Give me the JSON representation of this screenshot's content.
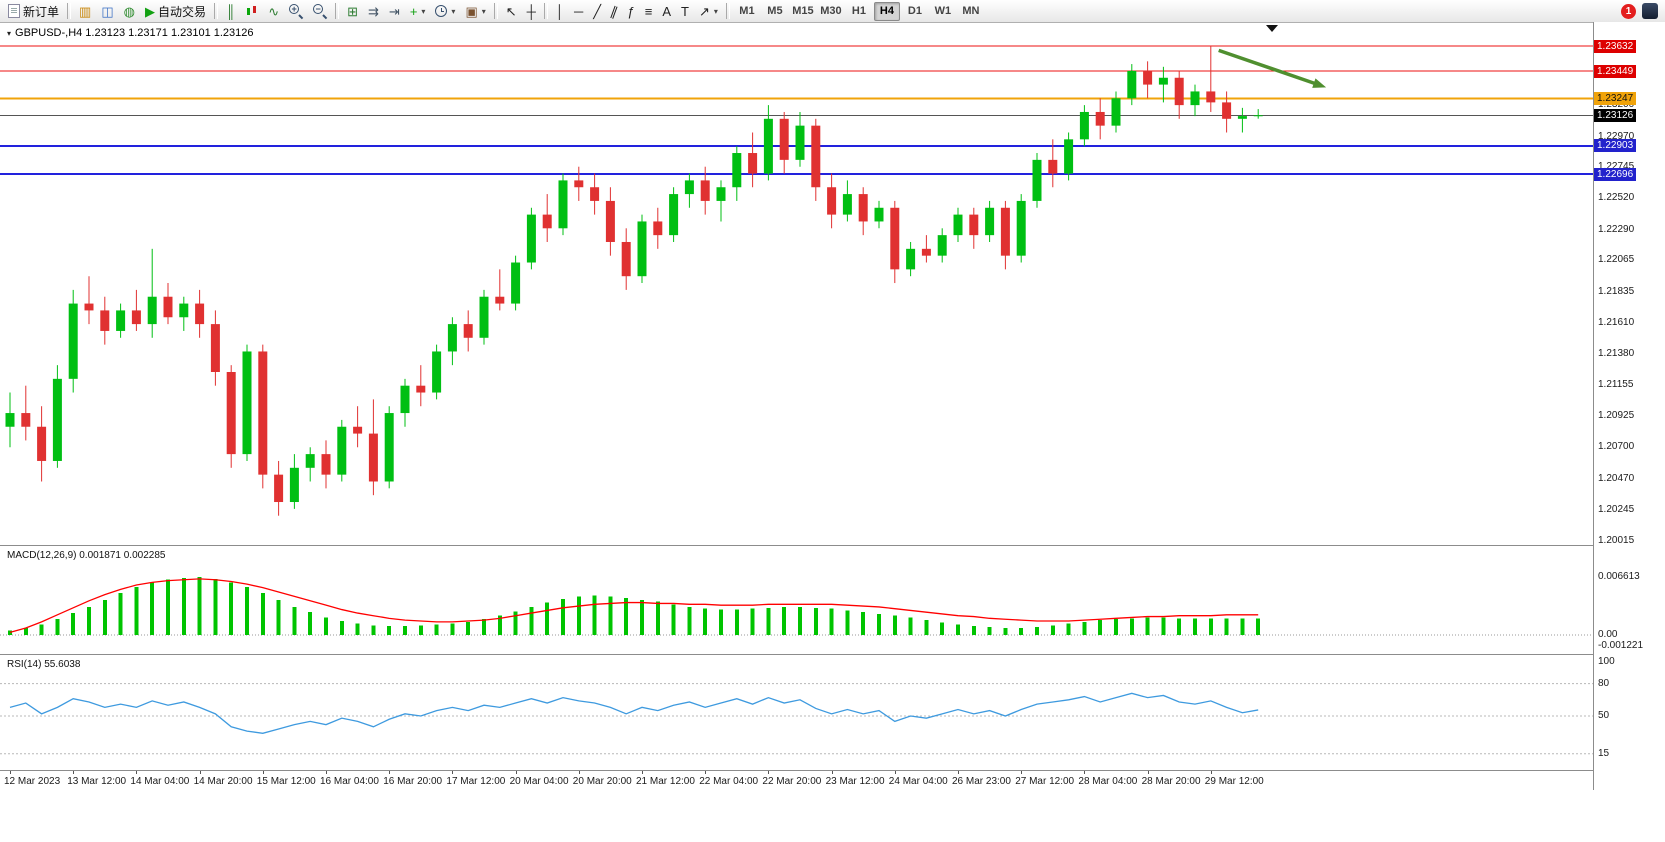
{
  "toolbar": {
    "timeframes": [
      "M1",
      "M5",
      "M15",
      "M30",
      "H1",
      "H4",
      "D1",
      "W1",
      "MN"
    ],
    "active_timeframe": "H4",
    "notification_count": "1",
    "groups": [
      {
        "items": [
          {
            "name": "new-order-button",
            "cssIcon": "doc",
            "icon": "new-order-icon",
            "label": "新订单"
          }
        ]
      },
      {
        "items": [
          {
            "name": "market-watch-button",
            "glyph": "▥",
            "color": "#c8860a",
            "icon": "market-watch-icon"
          },
          {
            "name": "navigator-button",
            "glyph": "◫",
            "color": "#3a6fc4",
            "icon": "navigator-icon"
          },
          {
            "name": "terminal-button",
            "glyph": "◍",
            "color": "#2e8b2e",
            "icon": "terminal-icon"
          },
          {
            "name": "autotrading-button",
            "glyph": "▶",
            "color": "#12a012",
            "icon": "autotrading-play-icon",
            "label": "自动交易"
          }
        ]
      },
      {
        "items": [
          {
            "name": "bar-chart-button",
            "glyph": "║",
            "color": "#2e7d32",
            "icon": "bar-chart-icon"
          },
          {
            "name": "candlestick-chart-button",
            "cssIcon": "candles",
            "icon": "candlestick-icon"
          },
          {
            "name": "line-chart-button",
            "glyph": "∿",
            "color": "#2e7d32",
            "icon": "line-chart-icon"
          },
          {
            "name": "zoom-in-button",
            "cssIcon": "zoomin",
            "icon": "zoom-in-icon"
          },
          {
            "name": "zoom-out-button",
            "cssIcon": "zoomout",
            "icon": "zoom-out-icon"
          }
        ]
      },
      {
        "items": [
          {
            "name": "tile-windows-button",
            "glyph": "⊞",
            "color": "#2e7d32",
            "icon": "tile-windows-icon"
          },
          {
            "name": "auto-scroll-button",
            "glyph": "⇉",
            "color": "#445566",
            "icon": "auto-scroll-icon"
          },
          {
            "name": "chart-shift-button",
            "glyph": "⇥",
            "color": "#445566",
            "icon": "chart-shift-icon"
          },
          {
            "name": "indicators-button",
            "glyph": "+",
            "color": "#12a012",
            "icon": "indicators-plus-icon",
            "dropdown": true
          },
          {
            "name": "periods-button",
            "cssIcon": "clock",
            "icon": "periods-clock-icon",
            "dropdown": true
          },
          {
            "name": "templates-button",
            "glyph": "▣",
            "color": "#7a5230",
            "icon": "templates-icon",
            "dropdown": true
          }
        ]
      },
      {
        "items": [
          {
            "name": "cursor-button",
            "glyph": "↖",
            "color": "#222222",
            "icon": "cursor-icon"
          },
          {
            "name": "crosshair-button",
            "glyph": "┼",
            "color": "#222222",
            "icon": "crosshair-icon"
          }
        ]
      },
      {
        "items": [
          {
            "name": "vertical-line-button",
            "glyph": "│",
            "color": "#222222",
            "icon": "vertical-line-icon"
          },
          {
            "name": "horizontal-line-button",
            "glyph": "─",
            "color": "#222222",
            "icon": "horizontal-line-icon"
          },
          {
            "name": "trendline-button",
            "glyph": "╱",
            "color": "#222222",
            "icon": "trendline-icon"
          },
          {
            "name": "channel-button",
            "glyph": "∥",
            "color": "#222222",
            "rot": true,
            "icon": "channel-icon"
          },
          {
            "name": "fibonacci-button",
            "glyph": "ƒ",
            "color": "#222222",
            "icon": "fibonacci-icon"
          },
          {
            "name": "cycle-lines-button",
            "glyph": "≡",
            "color": "#222222",
            "icon": "cycle-lines-icon"
          },
          {
            "name": "text-button",
            "glyph": "A",
            "color": "#222222",
            "icon": "text-icon"
          },
          {
            "name": "text-label-button",
            "glyph": "T",
            "color": "#222222",
            "icon": "text-label-icon"
          },
          {
            "name": "arrows-button",
            "glyph": "↗",
            "color": "#222222",
            "icon": "arrows-icon",
            "dropdown": true
          }
        ]
      }
    ]
  },
  "chart": {
    "title": "GBPUSD-,H4  1.23123 1.23171 1.23101 1.23126",
    "macd_label": "MACD(12,26,9) 0.001871 0.002285",
    "rsi_label": "RSI(14) 55.6038",
    "price_axis_labels": [
      "1.23200",
      "1.22970",
      "1.22745",
      "1.22520",
      "1.22290",
      "1.22065",
      "1.21835",
      "1.21610",
      "1.21380",
      "1.21155",
      "1.20925",
      "1.20700",
      "1.20470",
      "1.20245",
      "1.20015"
    ],
    "time_axis_labels": [
      "12 Mar 2023",
      "13 Mar 12:00",
      "14 Mar 04:00",
      "14 Mar 20:00",
      "15 Mar 12:00",
      "16 Mar 04:00",
      "16 Mar 20:00",
      "17 Mar 12:00",
      "20 Mar 04:00",
      "20 Mar 20:00",
      "21 Mar 12:00",
      "22 Mar 04:00",
      "22 Mar 20:00",
      "23 Mar 12:00",
      "24 Mar 04:00",
      "26 Mar 23:00",
      "27 Mar 12:00",
      "28 Mar 04:00",
      "28 Mar 20:00",
      "29 Mar 12:00"
    ],
    "macd_scale_labels": [
      "0.006613",
      "0.00",
      "-0.001221"
    ],
    "rsi_scale_labels": [
      "100",
      "80",
      "50",
      "15"
    ]
  },
  "chart_data": [
    {
      "type": "candlestick",
      "symbol": "GBPUSD-",
      "timeframe": "H4",
      "up_color": "#00bf13",
      "down_color": "#e03131",
      "ohlc": [
        [
          1.2085,
          1.211,
          1.207,
          1.2095
        ],
        [
          1.2095,
          1.2115,
          1.2075,
          1.2085
        ],
        [
          1.2085,
          1.21,
          1.2045,
          1.206
        ],
        [
          1.206,
          1.213,
          1.2055,
          1.212
        ],
        [
          1.212,
          1.2185,
          1.211,
          1.2175
        ],
        [
          1.2175,
          1.2195,
          1.216,
          1.217
        ],
        [
          1.217,
          1.218,
          1.2145,
          1.2155
        ],
        [
          1.2155,
          1.2175,
          1.215,
          1.217
        ],
        [
          1.217,
          1.2185,
          1.2155,
          1.216
        ],
        [
          1.216,
          1.2215,
          1.215,
          1.218
        ],
        [
          1.218,
          1.219,
          1.216,
          1.2165
        ],
        [
          1.2165,
          1.218,
          1.2155,
          1.2175
        ],
        [
          1.2175,
          1.2185,
          1.215,
          1.216
        ],
        [
          1.216,
          1.217,
          1.2115,
          1.2125
        ],
        [
          1.2125,
          1.213,
          1.2055,
          1.2065
        ],
        [
          1.2065,
          1.2145,
          1.206,
          1.214
        ],
        [
          1.214,
          1.2145,
          1.204,
          1.205
        ],
        [
          1.205,
          1.206,
          1.202,
          1.203
        ],
        [
          1.203,
          1.2065,
          1.2025,
          1.2055
        ],
        [
          1.2055,
          1.207,
          1.2045,
          1.2065
        ],
        [
          1.2065,
          1.2075,
          1.204,
          1.205
        ],
        [
          1.205,
          1.209,
          1.2045,
          1.2085
        ],
        [
          1.2085,
          1.21,
          1.207,
          1.208
        ],
        [
          1.208,
          1.2105,
          1.2035,
          1.2045
        ],
        [
          1.2045,
          1.21,
          1.204,
          1.2095
        ],
        [
          1.2095,
          1.212,
          1.2085,
          1.2115
        ],
        [
          1.2115,
          1.213,
          1.21,
          1.211
        ],
        [
          1.211,
          1.2145,
          1.2105,
          1.214
        ],
        [
          1.214,
          1.2165,
          1.213,
          1.216
        ],
        [
          1.216,
          1.217,
          1.214,
          1.215
        ],
        [
          1.215,
          1.2185,
          1.2145,
          1.218
        ],
        [
          1.218,
          1.22,
          1.217,
          1.2175
        ],
        [
          1.2175,
          1.221,
          1.217,
          1.2205
        ],
        [
          1.2205,
          1.2245,
          1.22,
          1.224
        ],
        [
          1.224,
          1.2255,
          1.222,
          1.223
        ],
        [
          1.223,
          1.227,
          1.2225,
          1.2265
        ],
        [
          1.2265,
          1.2275,
          1.225,
          1.226
        ],
        [
          1.226,
          1.227,
          1.224,
          1.225
        ],
        [
          1.225,
          1.226,
          1.221,
          1.222
        ],
        [
          1.222,
          1.223,
          1.2185,
          1.2195
        ],
        [
          1.2195,
          1.224,
          1.219,
          1.2235
        ],
        [
          1.2235,
          1.2245,
          1.2215,
          1.2225
        ],
        [
          1.2225,
          1.226,
          1.222,
          1.2255
        ],
        [
          1.2255,
          1.227,
          1.2245,
          1.2265
        ],
        [
          1.2265,
          1.2275,
          1.224,
          1.225
        ],
        [
          1.225,
          1.2265,
          1.2235,
          1.226
        ],
        [
          1.226,
          1.229,
          1.225,
          1.2285
        ],
        [
          1.2285,
          1.23,
          1.226,
          1.227
        ],
        [
          1.227,
          1.232,
          1.2265,
          1.231
        ],
        [
          1.231,
          1.2315,
          1.227,
          1.228
        ],
        [
          1.228,
          1.2315,
          1.2275,
          1.2305
        ],
        [
          1.2305,
          1.231,
          1.225,
          1.226
        ],
        [
          1.226,
          1.227,
          1.223,
          1.224
        ],
        [
          1.224,
          1.2265,
          1.2235,
          1.2255
        ],
        [
          1.2255,
          1.226,
          1.2225,
          1.2235
        ],
        [
          1.2235,
          1.225,
          1.223,
          1.2245
        ],
        [
          1.2245,
          1.225,
          1.219,
          1.22
        ],
        [
          1.22,
          1.222,
          1.2195,
          1.2215
        ],
        [
          1.2215,
          1.2225,
          1.2205,
          1.221
        ],
        [
          1.221,
          1.223,
          1.2205,
          1.2225
        ],
        [
          1.2225,
          1.2245,
          1.222,
          1.224
        ],
        [
          1.224,
          1.2245,
          1.2215,
          1.2225
        ],
        [
          1.2225,
          1.225,
          1.222,
          1.2245
        ],
        [
          1.2245,
          1.225,
          1.22,
          1.221
        ],
        [
          1.221,
          1.2255,
          1.2205,
          1.225
        ],
        [
          1.225,
          1.2285,
          1.2245,
          1.228
        ],
        [
          1.228,
          1.2295,
          1.226,
          1.227
        ],
        [
          1.227,
          1.23,
          1.2265,
          1.2295
        ],
        [
          1.2295,
          1.232,
          1.229,
          1.2315
        ],
        [
          1.2315,
          1.2325,
          1.2295,
          1.2305
        ],
        [
          1.2305,
          1.233,
          1.23,
          1.2325
        ],
        [
          1.2325,
          1.235,
          1.232,
          1.2345
        ],
        [
          1.2345,
          1.2352,
          1.2325,
          1.2335
        ],
        [
          1.2335,
          1.2348,
          1.2322,
          1.234
        ],
        [
          1.234,
          1.2345,
          1.231,
          1.232
        ],
        [
          1.232,
          1.2335,
          1.2312,
          1.233
        ],
        [
          1.233,
          1.23632,
          1.2315,
          1.2322
        ],
        [
          1.2322,
          1.233,
          1.23,
          1.231
        ],
        [
          1.231,
          1.2318,
          1.23,
          1.2312
        ],
        [
          1.23123,
          1.23171,
          1.23101,
          1.23126
        ]
      ],
      "levels": [
        {
          "price": 1.23632,
          "color": "#ee1111",
          "width": 1.4,
          "badge_bg": "#dd0000",
          "badge_fg": "#ffffff"
        },
        {
          "price": 1.23449,
          "color": "#ee1111",
          "width": 1.4,
          "badge_bg": "#dd0000",
          "badge_fg": "#ffffff"
        },
        {
          "price": 1.23247,
          "color": "#f0a30a",
          "width": 2,
          "badge_bg": "#f0a30a",
          "badge_fg": "#111111"
        },
        {
          "price": 1.22903,
          "color": "#2222dd",
          "width": 2,
          "badge_bg": "#2222cc",
          "badge_fg": "#ffffff"
        },
        {
          "price": 1.22696,
          "color": "#2222dd",
          "width": 2,
          "badge_bg": "#2222cc",
          "badge_fg": "#ffffff"
        }
      ],
      "current_price": {
        "price": 1.23126,
        "color": "#555555",
        "badge_bg": "#000000",
        "badge_fg": "#ffffff"
      },
      "annotation_arrow": {
        "from_bar": 76.5,
        "from_price": 1.236,
        "to_bar": 83.3,
        "to_price": 1.2333,
        "color": "#4f8f2f"
      }
    },
    {
      "type": "bar",
      "name": "MACD",
      "params": "12,26,9",
      "bar_color": "#00c400",
      "signal_color": "#ff0000",
      "values": [
        0.0005,
        0.0008,
        0.0012,
        0.0018,
        0.0025,
        0.0032,
        0.004,
        0.0048,
        0.0055,
        0.006,
        0.0063,
        0.0065,
        0.0066,
        0.0064,
        0.006,
        0.0055,
        0.0048,
        0.004,
        0.0032,
        0.0026,
        0.002,
        0.0016,
        0.0013,
        0.0011,
        0.001,
        0.001,
        0.0011,
        0.0012,
        0.0013,
        0.0015,
        0.0018,
        0.0022,
        0.0027,
        0.0032,
        0.0037,
        0.0041,
        0.0044,
        0.0045,
        0.0044,
        0.0042,
        0.004,
        0.0038,
        0.0035,
        0.0032,
        0.003,
        0.0029,
        0.0029,
        0.003,
        0.0031,
        0.0032,
        0.0032,
        0.0031,
        0.003,
        0.0028,
        0.0026,
        0.0024,
        0.0022,
        0.002,
        0.0017,
        0.0014,
        0.0012,
        0.001,
        0.0009,
        0.0008,
        0.0008,
        0.0009,
        0.0011,
        0.0013,
        0.0015,
        0.0017,
        0.0018,
        0.0019,
        0.002,
        0.002,
        0.0019,
        0.0019,
        0.0019,
        0.0019,
        0.0019,
        0.0019
      ],
      "signal": [
        0.0003,
        0.0008,
        0.0015,
        0.0023,
        0.0031,
        0.0039,
        0.0046,
        0.0052,
        0.0057,
        0.006,
        0.0062,
        0.0063,
        0.0064,
        0.0063,
        0.0061,
        0.0058,
        0.0054,
        0.0049,
        0.0044,
        0.0039,
        0.0034,
        0.0029,
        0.0025,
        0.0022,
        0.0019,
        0.0017,
        0.0016,
        0.0015,
        0.0015,
        0.0016,
        0.0017,
        0.0019,
        0.0022,
        0.0025,
        0.0028,
        0.0031,
        0.0033,
        0.0035,
        0.0036,
        0.0037,
        0.0037,
        0.0036,
        0.0036,
        0.0035,
        0.0035,
        0.0034,
        0.0034,
        0.0034,
        0.0035,
        0.0035,
        0.0035,
        0.0035,
        0.0035,
        0.0034,
        0.0033,
        0.0032,
        0.003,
        0.0028,
        0.0026,
        0.0024,
        0.0022,
        0.0021,
        0.0019,
        0.0018,
        0.0017,
        0.0016,
        0.0016,
        0.0016,
        0.0017,
        0.0018,
        0.0019,
        0.002,
        0.0021,
        0.0021,
        0.0022,
        0.0022,
        0.0022,
        0.0023,
        0.0023,
        0.0023
      ],
      "value_labels": [
        0.006613,
        0.0,
        -0.001221
      ]
    },
    {
      "type": "line",
      "name": "RSI",
      "period": 14,
      "line_color": "#3e9adf",
      "range": [
        0,
        100
      ],
      "levels": [
        80,
        50,
        15
      ],
      "values": [
        58,
        62,
        52,
        58,
        66,
        63,
        58,
        61,
        58,
        64,
        60,
        63,
        58,
        52,
        40,
        36,
        34,
        38,
        42,
        45,
        42,
        48,
        45,
        40,
        47,
        52,
        50,
        55,
        58,
        55,
        60,
        58,
        62,
        66,
        62,
        67,
        64,
        62,
        58,
        52,
        58,
        55,
        60,
        63,
        58,
        62,
        66,
        61,
        67,
        62,
        65,
        57,
        52,
        56,
        52,
        55,
        45,
        50,
        48,
        52,
        56,
        52,
        55,
        50,
        56,
        61,
        63,
        65,
        68,
        63,
        67,
        71,
        67,
        69,
        63,
        61,
        64,
        58,
        53,
        55.6
      ]
    }
  ]
}
